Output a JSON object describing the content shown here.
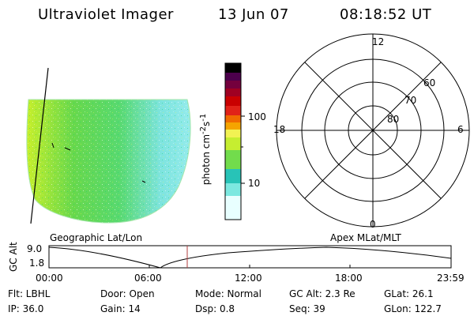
{
  "header": {
    "instrument": "Ultraviolet Imager",
    "date": "13 Jun 07",
    "time": "08:18:52 UT"
  },
  "colors": {
    "cyan": "#5ee6e6",
    "green": "#4fdc4f",
    "yellowgreen": "#c9ef2f",
    "yellow": "#f5f52f",
    "orange": "#f0a000",
    "red": "#d00000",
    "darkred": "#700000",
    "black": "#000000"
  },
  "colorbar": {
    "label": "photon cm<sup>-2</sup>s<sup>-1</sup>",
    "ticks": [
      "100",
      "10"
    ]
  },
  "polar_plot": {
    "lat_labels": [
      "80",
      "70",
      "60"
    ],
    "mlt_labels": {
      "top": "12",
      "left": "18",
      "right": "6",
      "bottom": "0"
    }
  },
  "altitude_plot": {
    "y_label": "GC Alt",
    "y_ticks": [
      "9.0",
      "1.8"
    ],
    "x_ticks": [
      "00:00",
      "06:00",
      "12:00",
      "18:00",
      "23:59"
    ],
    "left_title": "Geographic Lat/Lon",
    "right_title": "Apex MLat/MLT"
  },
  "status": {
    "flt": "Flt: LBHL",
    "ip": "IP: 36.0",
    "door": "Door: Open",
    "gain": "Gain: 14",
    "mode": "Mode: Normal",
    "dsp": "Dsp:      0.8",
    "gc_alt": "GC Alt: 2.3 Re",
    "seq": "Seq: 39",
    "glat": "GLat:   26.1",
    "glon": "GLon: 122.7"
  }
}
